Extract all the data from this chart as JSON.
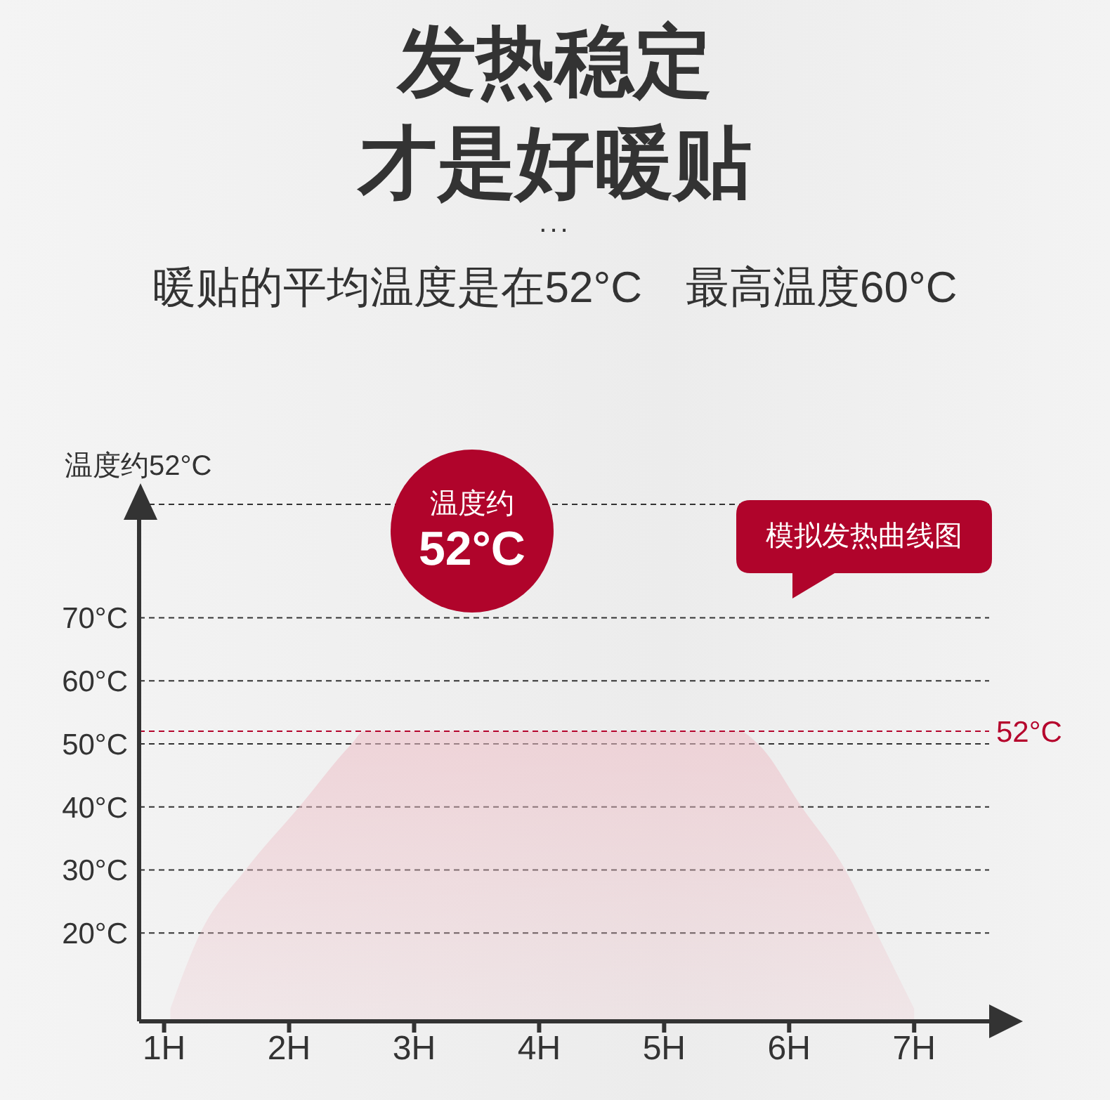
{
  "chart_data": {
    "type": "area",
    "title": "发热稳定才是好暖贴",
    "subtitle": "暖贴的平均温度是在52°C　最高温度60°C",
    "ylabel": "温度约52°C",
    "annotations": [
      "...",
      "温度约\n52°C",
      "模拟发热曲线图"
    ],
    "x": [
      1.05,
      1.29,
      1.65,
      2.08,
      2.5,
      2.6,
      3,
      4,
      5,
      5.6,
      5.75,
      6.1,
      6.45,
      6.7,
      7.0
    ],
    "values": [
      8,
      20,
      30,
      40,
      50,
      52,
      52,
      52,
      52,
      52,
      50,
      40,
      30,
      20,
      8
    ],
    "color": "#eebfc7",
    "xlim": [
      0.8,
      7.6
    ],
    "xticks": [
      {
        "value": 1,
        "label": "1H"
      },
      {
        "value": 2,
        "label": "2H"
      },
      {
        "value": 3,
        "label": "3H"
      },
      {
        "value": 4,
        "label": "4H"
      },
      {
        "value": 5,
        "label": "5H"
      },
      {
        "value": 6,
        "label": "6H"
      },
      {
        "value": 7,
        "label": "7H"
      }
    ],
    "ylim": [
      6,
      88
    ],
    "yticks": [
      {
        "value": 20,
        "label": "20°C"
      },
      {
        "value": 30,
        "label": "30°C"
      },
      {
        "value": 40,
        "label": "40°C"
      },
      {
        "value": 50,
        "label": "50°C"
      },
      {
        "value": 60,
        "label": "60°C"
      },
      {
        "value": 70,
        "label": "70°C"
      }
    ],
    "grid": "y",
    "ref_lines": [
      {
        "axis": "y",
        "value": 52,
        "label": "52°C",
        "color": "#b5052d",
        "line_style": "dashed"
      }
    ]
  }
}
